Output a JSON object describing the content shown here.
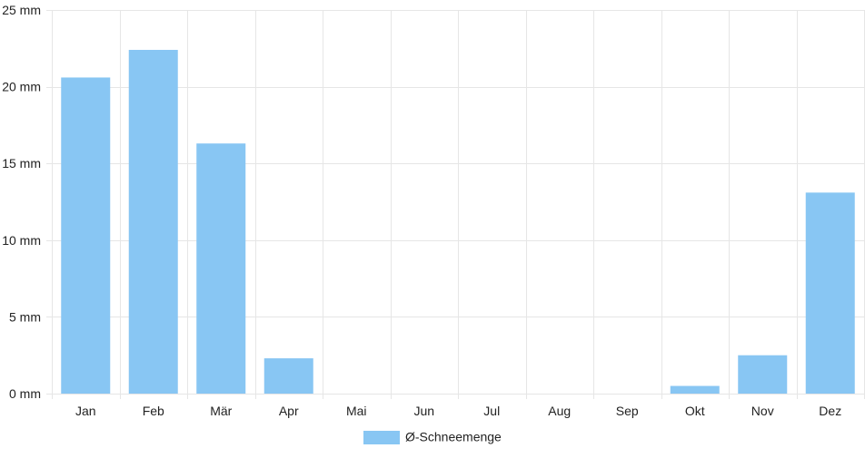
{
  "chart_data": {
    "type": "bar",
    "categories": [
      "Jan",
      "Feb",
      "Mär",
      "Apr",
      "Mai",
      "Jun",
      "Jul",
      "Aug",
      "Sep",
      "Okt",
      "Nov",
      "Dez"
    ],
    "series": [
      {
        "name": "Ø-Schneemenge",
        "values": [
          20.6,
          22.4,
          16.3,
          2.3,
          0,
          0,
          0,
          0,
          0,
          0.5,
          2.5,
          13.1
        ],
        "color": "#88c6f3"
      }
    ],
    "y_ticks": [
      0,
      5,
      10,
      15,
      20,
      25
    ],
    "y_tick_suffix": " mm",
    "ylim": [
      0,
      25
    ],
    "grid": true,
    "legend_position": "bottom-center",
    "grid_color": "#e6e6e6"
  }
}
